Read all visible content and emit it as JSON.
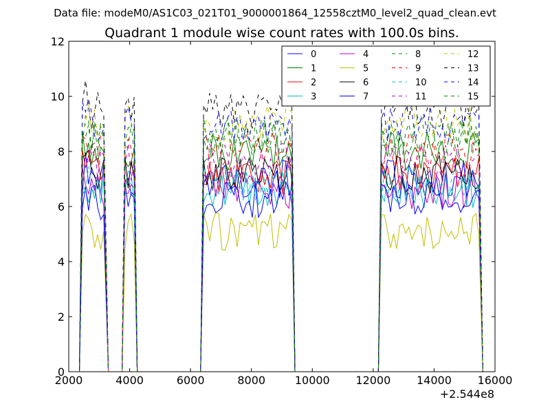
{
  "header": {
    "file_label": "Data file: modeM0/AS1C03_021T01_9000001864_12558cztM0_level2_quad_clean.evt"
  },
  "chart_data": {
    "type": "line",
    "title": "Quadrant 1 module wise count rates with 100.0s bins.",
    "xlabel": "",
    "ylabel": "",
    "x_offset_label": "+2.544e8",
    "xlim": [
      2000,
      16000
    ],
    "ylim": [
      0,
      12
    ],
    "x_ticks": [
      2000,
      4000,
      6000,
      8000,
      10000,
      12000,
      14000,
      16000
    ],
    "y_ticks": [
      0,
      2,
      4,
      6,
      8,
      10,
      12
    ],
    "grid": false,
    "legend_position": "top-right",
    "gti_segments": [
      [
        2450,
        3200
      ],
      [
        3850,
        4150
      ],
      [
        6430,
        9330
      ],
      [
        12270,
        15500
      ]
    ],
    "series": [
      {
        "name": "0",
        "color": "#0000ff",
        "style": "solid",
        "level": 7.0
      },
      {
        "name": "1",
        "color": "#008000",
        "style": "solid",
        "level": 8.0
      },
      {
        "name": "2",
        "color": "#ff0000",
        "style": "solid",
        "level": 7.1
      },
      {
        "name": "3",
        "color": "#00bfbf",
        "style": "solid",
        "level": 6.6
      },
      {
        "name": "4",
        "color": "#bf00bf",
        "style": "solid",
        "level": 6.6
      },
      {
        "name": "5",
        "color": "#bfbf00",
        "style": "solid",
        "level": 5.1
      },
      {
        "name": "6",
        "color": "#000000",
        "style": "solid",
        "level": 7.2
      },
      {
        "name": "7",
        "color": "#0000ff",
        "style": "solid",
        "level": 6.2
      },
      {
        "name": "8",
        "color": "#008000",
        "style": "dashed",
        "level": 8.6
      },
      {
        "name": "9",
        "color": "#ff0000",
        "style": "dashed",
        "level": 8.0
      },
      {
        "name": "10",
        "color": "#00bfbf",
        "style": "dashed",
        "level": 6.8
      },
      {
        "name": "11",
        "color": "#bf00bf",
        "style": "dashed",
        "level": 7.6
      },
      {
        "name": "12",
        "color": "#bfbf00",
        "style": "dashed",
        "level": 9.0
      },
      {
        "name": "13",
        "color": "#000000",
        "style": "dashed",
        "level": 9.5
      },
      {
        "name": "14",
        "color": "#0000ff",
        "style": "dashed",
        "level": 9.0
      },
      {
        "name": "15",
        "color": "#008000",
        "style": "dashed",
        "level": 8.4
      }
    ]
  }
}
